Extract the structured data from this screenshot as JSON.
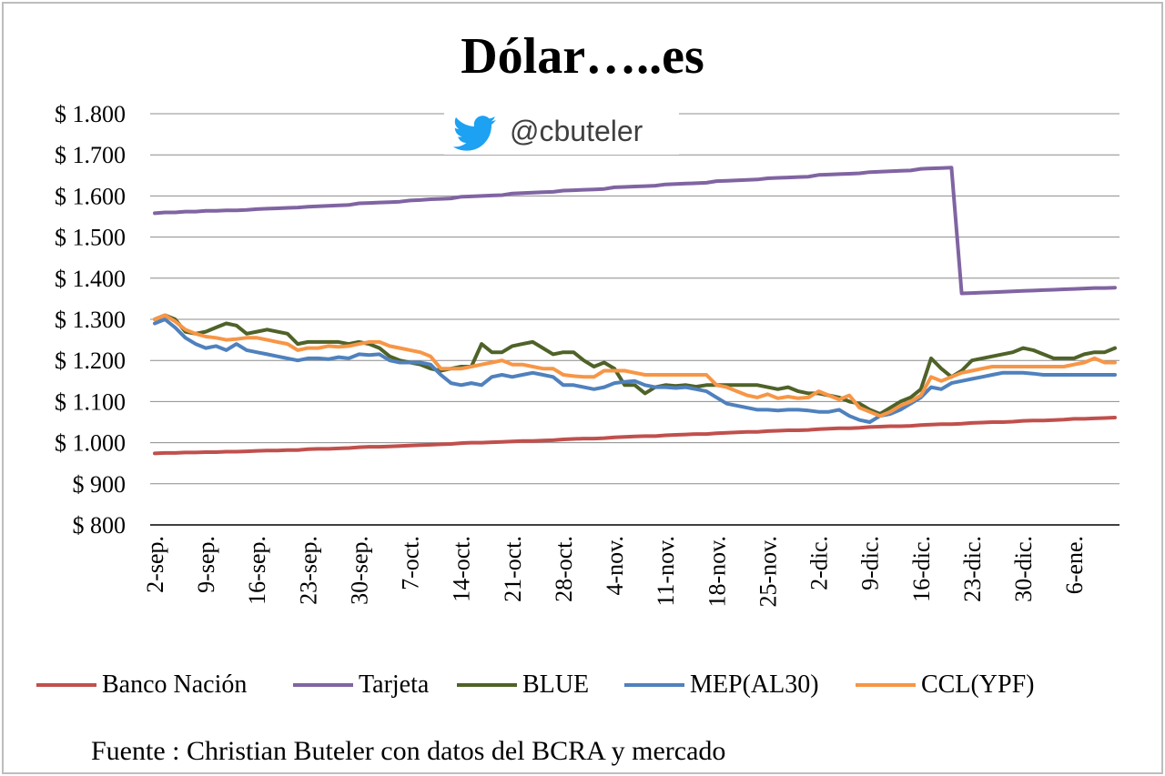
{
  "chart_data": {
    "type": "line",
    "title": "Dólar…..es",
    "watermark": {
      "icon": "twitter-bird-icon",
      "handle": "@cbuteler",
      "color": "#1da1f2"
    },
    "xlabel": "",
    "ylabel": "",
    "ylim": [
      800,
      1800
    ],
    "ytick_values": [
      800,
      900,
      1000,
      1100,
      1200,
      1300,
      1400,
      1500,
      1600,
      1700,
      1800
    ],
    "ytick_labels": [
      "$ 800",
      "$ 900",
      "$ 1.000",
      "$ 1.100",
      "$ 1.200",
      "$ 1.300",
      "$ 1.400",
      "$ 1.500",
      "$ 1.600",
      "$ 1.700",
      "$ 1.800"
    ],
    "grid": true,
    "legend_position": "bottom",
    "x": [
      "2-sep.",
      "3-sep.",
      "4-sep.",
      "5-sep.",
      "6-sep.",
      "9-sep.",
      "10-sep.",
      "11-sep.",
      "12-sep.",
      "13-sep.",
      "16-sep.",
      "17-sep.",
      "18-sep.",
      "19-sep.",
      "20-sep.",
      "23-sep.",
      "24-sep.",
      "25-sep.",
      "26-sep.",
      "27-sep.",
      "30-sep.",
      "1-oct.",
      "2-oct.",
      "3-oct.",
      "4-oct.",
      "7-oct.",
      "8-oct.",
      "9-oct.",
      "10-oct.",
      "11-oct.",
      "14-oct.",
      "15-oct.",
      "16-oct.",
      "17-oct.",
      "18-oct.",
      "21-oct.",
      "22-oct.",
      "23-oct.",
      "24-oct.",
      "25-oct.",
      "28-oct.",
      "29-oct.",
      "30-oct.",
      "31-oct.",
      "1-nov.",
      "4-nov.",
      "5-nov.",
      "6-nov.",
      "7-nov.",
      "8-nov.",
      "11-nov.",
      "12-nov.",
      "13-nov.",
      "14-nov.",
      "15-nov.",
      "18-nov.",
      "19-nov.",
      "20-nov.",
      "21-nov.",
      "22-nov.",
      "25-nov.",
      "26-nov.",
      "27-nov.",
      "28-nov.",
      "29-nov.",
      "2-dic.",
      "3-dic.",
      "4-dic.",
      "5-dic.",
      "6-dic.",
      "9-dic.",
      "10-dic.",
      "11-dic.",
      "12-dic.",
      "13-dic.",
      "16-dic.",
      "17-dic.",
      "18-dic.",
      "19-dic.",
      "20-dic.",
      "23-dic.",
      "24-dic.",
      "25-dic.",
      "26-dic.",
      "27-dic.",
      "30-dic.",
      "31-dic.",
      "1-ene.",
      "2-ene.",
      "3-ene.",
      "6-ene.",
      "7-ene.",
      "8-ene.",
      "9-ene.",
      "10-ene."
    ],
    "xtick_labels": [
      "2-sep.",
      "9-sep.",
      "16-sep.",
      "23-sep.",
      "30-sep.",
      "7-oct.",
      "14-oct.",
      "21-oct.",
      "28-oct.",
      "4-nov.",
      "11-nov.",
      "18-nov.",
      "25-nov.",
      "2-dic.",
      "9-dic.",
      "16-dic.",
      "23-dic.",
      "30-dic.",
      "6-ene."
    ],
    "series": [
      {
        "name": "Banco Nación",
        "color": "#c0504d",
        "values": [
          974,
          975,
          975,
          976,
          976,
          977,
          977,
          978,
          978,
          979,
          980,
          981,
          981,
          982,
          982,
          984,
          985,
          985,
          986,
          987,
          989,
          990,
          990,
          991,
          992,
          993,
          994,
          995,
          996,
          997,
          999,
          1000,
          1000,
          1001,
          1002,
          1003,
          1004,
          1004,
          1005,
          1006,
          1008,
          1009,
          1010,
          1010,
          1011,
          1013,
          1014,
          1015,
          1016,
          1016,
          1018,
          1019,
          1020,
          1021,
          1021,
          1023,
          1024,
          1025,
          1026,
          1026,
          1028,
          1029,
          1030,
          1030,
          1031,
          1033,
          1034,
          1035,
          1035,
          1036,
          1038,
          1039,
          1040,
          1040,
          1041,
          1043,
          1044,
          1045,
          1045,
          1046,
          1048,
          1049,
          1050,
          1050,
          1051,
          1053,
          1054,
          1054,
          1055,
          1056,
          1058,
          1058,
          1059,
          1060,
          1061
        ]
      },
      {
        "name": "Tarjeta",
        "color": "#8064a2",
        "values": [
          1558,
          1560,
          1560,
          1562,
          1562,
          1564,
          1564,
          1565,
          1565,
          1566,
          1568,
          1569,
          1570,
          1571,
          1572,
          1574,
          1575,
          1576,
          1577,
          1578,
          1582,
          1583,
          1584,
          1585,
          1586,
          1589,
          1590,
          1592,
          1593,
          1594,
          1598,
          1599,
          1600,
          1601,
          1602,
          1606,
          1607,
          1608,
          1609,
          1610,
          1613,
          1614,
          1615,
          1616,
          1617,
          1621,
          1622,
          1623,
          1624,
          1625,
          1628,
          1629,
          1630,
          1631,
          1632,
          1636,
          1637,
          1638,
          1639,
          1640,
          1643,
          1644,
          1645,
          1646,
          1647,
          1651,
          1652,
          1653,
          1654,
          1655,
          1658,
          1659,
          1660,
          1661,
          1662,
          1666,
          1667,
          1668,
          1669,
          1363,
          1364,
          1365,
          1366,
          1367,
          1368,
          1369,
          1370,
          1371,
          1372,
          1373,
          1374,
          1375,
          1376,
          1376,
          1377
        ]
      },
      {
        "name": "BLUE",
        "color": "#4f6228",
        "values": [
          1300,
          1310,
          1300,
          1270,
          1265,
          1270,
          1280,
          1290,
          1285,
          1265,
          1270,
          1275,
          1270,
          1265,
          1240,
          1245,
          1245,
          1245,
          1245,
          1240,
          1245,
          1240,
          1230,
          1210,
          1200,
          1195,
          1190,
          1180,
          1175,
          1180,
          1185,
          1185,
          1240,
          1220,
          1220,
          1235,
          1240,
          1245,
          1230,
          1215,
          1220,
          1220,
          1200,
          1185,
          1195,
          1180,
          1140,
          1140,
          1120,
          1135,
          1140,
          1138,
          1140,
          1136,
          1140,
          1140,
          1140,
          1140,
          1140,
          1140,
          1135,
          1130,
          1135,
          1125,
          1120,
          1120,
          1115,
          1110,
          1100,
          1095,
          1080,
          1070,
          1085,
          1100,
          1110,
          1130,
          1205,
          1180,
          1160,
          1175,
          1200,
          1205,
          1210,
          1215,
          1220,
          1230,
          1225,
          1215,
          1205,
          1205,
          1205,
          1215,
          1220,
          1220,
          1230
        ]
      },
      {
        "name": "MEP(AL30)",
        "color": "#4f81bd",
        "values": [
          1290,
          1300,
          1280,
          1255,
          1240,
          1230,
          1235,
          1225,
          1240,
          1225,
          1220,
          1215,
          1210,
          1205,
          1200,
          1205,
          1205,
          1203,
          1208,
          1205,
          1215,
          1213,
          1215,
          1200,
          1195,
          1195,
          1195,
          1190,
          1165,
          1145,
          1140,
          1145,
          1140,
          1160,
          1165,
          1160,
          1165,
          1170,
          1165,
          1160,
          1140,
          1140,
          1135,
          1130,
          1135,
          1145,
          1148,
          1150,
          1140,
          1135,
          1135,
          1133,
          1135,
          1130,
          1125,
          1110,
          1095,
          1090,
          1085,
          1080,
          1080,
          1078,
          1080,
          1080,
          1078,
          1075,
          1075,
          1080,
          1065,
          1055,
          1050,
          1065,
          1070,
          1080,
          1095,
          1110,
          1135,
          1130,
          1145,
          1150,
          1155,
          1160,
          1165,
          1170,
          1170,
          1170,
          1168,
          1165,
          1165,
          1165,
          1165,
          1165,
          1165,
          1165,
          1165
        ]
      },
      {
        "name": "CCL(YPF)",
        "color": "#f79646",
        "values": [
          1300,
          1310,
          1295,
          1275,
          1265,
          1258,
          1255,
          1250,
          1252,
          1255,
          1255,
          1250,
          1245,
          1240,
          1225,
          1230,
          1230,
          1235,
          1233,
          1235,
          1240,
          1245,
          1245,
          1235,
          1230,
          1225,
          1220,
          1210,
          1180,
          1180,
          1180,
          1185,
          1190,
          1195,
          1200,
          1190,
          1190,
          1185,
          1180,
          1180,
          1165,
          1162,
          1160,
          1160,
          1175,
          1175,
          1175,
          1170,
          1165,
          1165,
          1165,
          1165,
          1165,
          1165,
          1165,
          1140,
          1135,
          1125,
          1115,
          1110,
          1118,
          1108,
          1112,
          1108,
          1110,
          1125,
          1115,
          1105,
          1115,
          1085,
          1075,
          1065,
          1075,
          1090,
          1100,
          1115,
          1160,
          1150,
          1160,
          1170,
          1175,
          1180,
          1185,
          1185,
          1185,
          1185,
          1185,
          1185,
          1185,
          1185,
          1190,
          1195,
          1205,
          1195,
          1195
        ]
      }
    ],
    "source_note": "Fuente : Christian Buteler con datos del BCRA y mercado"
  }
}
